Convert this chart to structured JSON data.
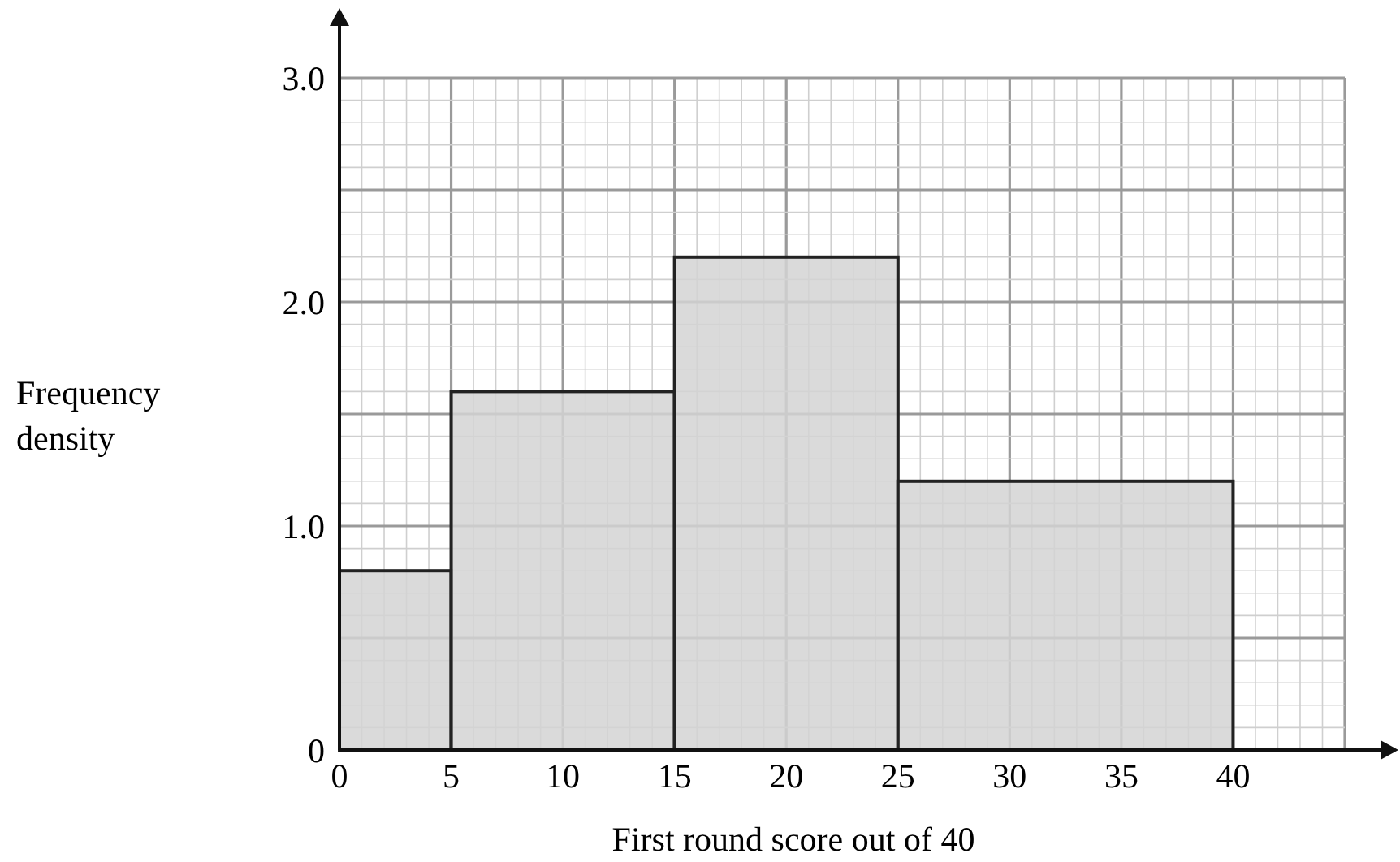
{
  "chart_data": {
    "type": "histogram",
    "xlabel": "First round score out of 40",
    "ylabel": "Frequency density",
    "bins": [
      0,
      5,
      15,
      25,
      40
    ],
    "values": [
      0.8,
      1.6,
      2.2,
      1.2
    ],
    "color": "#d3d3d3",
    "xlim": [
      0,
      45
    ],
    "ylim": [
      0,
      3
    ],
    "xticks": [
      0,
      5,
      10,
      15,
      20,
      25,
      30,
      35,
      40
    ],
    "yticks": [
      0,
      {
        "value": 1,
        "label": "1.0"
      },
      {
        "value": 2,
        "label": "2.0"
      },
      {
        "value": 3,
        "label": "3.0"
      }
    ],
    "grid": true
  }
}
